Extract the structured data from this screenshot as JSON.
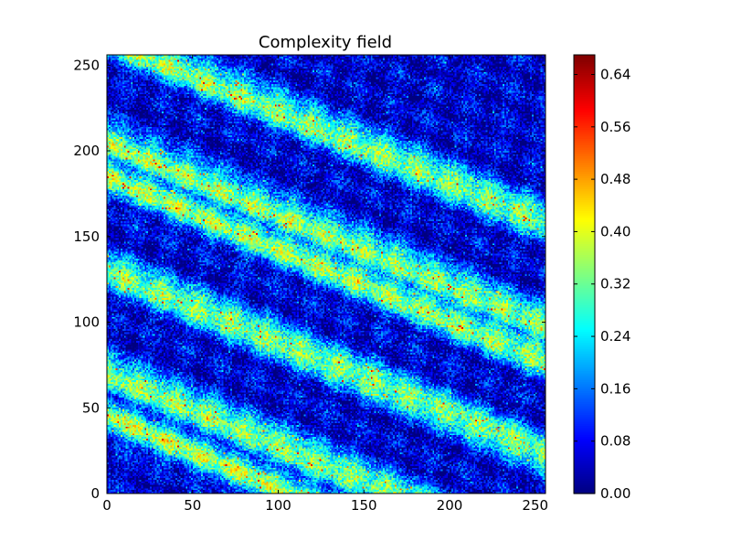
{
  "chart_data": {
    "type": "heatmap",
    "title": "Complexity field",
    "xlabel": "",
    "ylabel": "",
    "grid": false,
    "xlim": [
      0,
      256
    ],
    "ylim": [
      0,
      256
    ],
    "x_ticks": [
      0,
      50,
      100,
      150,
      200,
      250
    ],
    "y_ticks": [
      0,
      50,
      100,
      150,
      200,
      250
    ],
    "colorbar": {
      "colormap": "jet",
      "vmin": 0.0,
      "vmax": 0.67,
      "ticks": [
        "0.00",
        "0.08",
        "0.16",
        "0.24",
        "0.32",
        "0.40",
        "0.48",
        "0.56",
        "0.64"
      ]
    },
    "pattern": {
      "description_of_values": "values 0.00-0.67; higher-value bands run diagonally from upper-left toward lower-right",
      "bands_y_at_x0": [
        265,
        205,
        185,
        130,
        70,
        45
      ],
      "band_slope": -0.42
    }
  }
}
